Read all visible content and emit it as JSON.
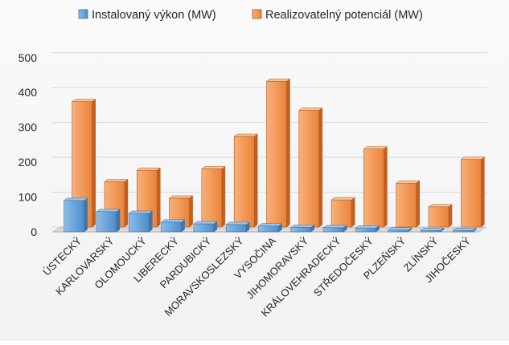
{
  "chart_data": {
    "type": "bar",
    "title": "",
    "xlabel": "",
    "ylabel": "",
    "ylim": [
      0,
      500
    ],
    "yticks": [
      0,
      100,
      200,
      300,
      400,
      500
    ],
    "grid": true,
    "legend_position": "top",
    "style": "3d-columns",
    "categories": [
      "ÚSTECKÝ",
      "KARLOVARSKÝ",
      "OLOMOUCKÝ",
      "LIBERECKÝ",
      "PARDUBICKÝ",
      "MORAVSKOSLEZSKÝ",
      "VYSOČINA",
      "JIHOMORAVSKÝ",
      "KRÁLOVEHRADECKÝ",
      "STŘEDOČESKÝ",
      "PLZEŇSKÝ",
      "ZLÍNSKÝ",
      "JIHOČESKÝ"
    ],
    "series": [
      {
        "name": "Instalovaný výkon (MW)",
        "color": "#5b9bd5",
        "values": [
          90,
          58,
          53,
          28,
          23,
          21,
          17,
          13,
          12,
          11,
          5,
          4,
          4
        ]
      },
      {
        "name": "Realizovatelný potenciál (MW)",
        "color": "#ed7d31",
        "values": [
          360,
          130,
          163,
          83,
          167,
          260,
          418,
          335,
          78,
          224,
          126,
          58,
          194
        ]
      }
    ]
  }
}
